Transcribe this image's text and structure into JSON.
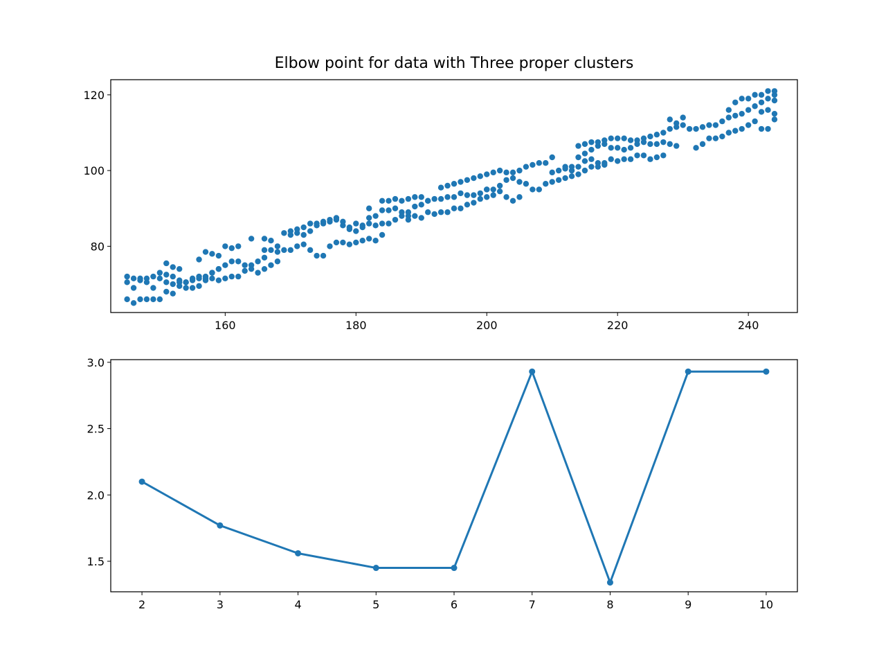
{
  "title": "Elbow point for data with Three proper clusters",
  "colors": {
    "series": "#1f77b4",
    "axes": "#000000",
    "background": "#ffffff"
  },
  "chart_data": [
    {
      "type": "scatter",
      "xlim": [
        142.5,
        247.5
      ],
      "ylim": [
        62.5,
        124
      ],
      "xticks": [
        160,
        180,
        200,
        220,
        240
      ],
      "yticks": [
        80,
        100,
        120
      ],
      "grid": false,
      "points": [
        [
          145,
          72
        ],
        [
          146,
          71.5
        ],
        [
          147,
          71.5
        ],
        [
          148,
          71.5
        ],
        [
          149,
          72
        ],
        [
          150,
          73
        ],
        [
          151,
          72.5
        ],
        [
          152,
          72
        ],
        [
          153,
          71
        ],
        [
          154,
          70.5
        ],
        [
          155,
          71.5
        ],
        [
          156,
          71.5
        ],
        [
          157,
          72
        ],
        [
          158,
          73
        ],
        [
          159,
          74
        ],
        [
          160,
          75
        ],
        [
          161,
          76
        ],
        [
          162,
          76
        ],
        [
          163,
          75
        ],
        [
          164,
          75
        ],
        [
          165,
          76
        ],
        [
          166,
          77
        ],
        [
          167,
          75
        ],
        [
          168,
          76
        ],
        [
          145,
          70.5
        ],
        [
          146,
          69
        ],
        [
          147,
          71
        ],
        [
          148,
          70.5
        ],
        [
          149,
          69
        ],
        [
          150,
          71.5
        ],
        [
          151,
          70.5
        ],
        [
          152,
          70
        ],
        [
          153,
          70.5
        ],
        [
          154,
          69
        ],
        [
          155,
          69
        ],
        [
          156,
          69.5
        ],
        [
          157,
          71
        ],
        [
          158,
          71.5
        ],
        [
          159,
          71
        ],
        [
          160,
          71.5
        ],
        [
          161,
          72
        ],
        [
          162,
          72
        ],
        [
          163,
          73.5
        ],
        [
          164,
          74
        ],
        [
          165,
          73
        ],
        [
          166,
          74
        ],
        [
          145,
          66
        ],
        [
          146,
          65
        ],
        [
          147,
          66
        ],
        [
          148,
          66
        ],
        [
          149,
          66
        ],
        [
          150,
          66
        ],
        [
          151,
          68
        ],
        [
          152,
          67.5
        ],
        [
          153,
          69.5
        ],
        [
          154,
          70.5
        ],
        [
          155,
          71
        ],
        [
          156,
          72
        ],
        [
          157,
          71.5
        ],
        [
          158,
          73
        ],
        [
          159,
          74
        ],
        [
          151,
          75.5
        ],
        [
          152,
          74.5
        ],
        [
          153,
          74
        ],
        [
          156,
          76.5
        ],
        [
          157,
          78.5
        ],
        [
          158,
          78
        ],
        [
          159,
          77.5
        ],
        [
          160,
          80
        ],
        [
          161,
          79.5
        ],
        [
          162,
          80
        ],
        [
          164,
          82
        ],
        [
          166,
          82
        ],
        [
          167,
          81.5
        ],
        [
          168,
          80
        ],
        [
          166,
          79
        ],
        [
          167,
          79
        ],
        [
          168,
          78.5
        ],
        [
          169,
          79
        ],
        [
          170,
          79
        ],
        [
          171,
          80
        ],
        [
          172,
          80.5
        ],
        [
          173,
          79
        ],
        [
          174,
          77.5
        ],
        [
          175,
          77.5
        ],
        [
          176,
          80
        ],
        [
          177,
          81
        ],
        [
          178,
          81
        ],
        [
          179,
          80.5
        ],
        [
          180,
          81
        ],
        [
          181,
          81.5
        ],
        [
          182,
          82
        ],
        [
          183,
          81.5
        ],
        [
          184,
          83
        ],
        [
          169,
          83.5
        ],
        [
          170,
          84
        ],
        [
          171,
          83.5
        ],
        [
          172,
          83
        ],
        [
          173,
          84
        ],
        [
          174,
          85.5
        ],
        [
          175,
          86
        ],
        [
          176,
          86.5
        ],
        [
          177,
          87
        ],
        [
          178,
          86.5
        ],
        [
          179,
          85
        ],
        [
          180,
          86
        ],
        [
          181,
          85.5
        ],
        [
          182,
          86
        ],
        [
          183,
          85.5
        ],
        [
          184,
          86
        ],
        [
          185,
          86
        ],
        [
          186,
          87
        ],
        [
          187,
          88
        ],
        [
          188,
          88
        ],
        [
          170,
          83
        ],
        [
          171,
          84.5
        ],
        [
          172,
          85
        ],
        [
          173,
          86
        ],
        [
          174,
          86
        ],
        [
          175,
          86.5
        ],
        [
          176,
          87
        ],
        [
          177,
          87.5
        ],
        [
          178,
          85.5
        ],
        [
          179,
          84.5
        ],
        [
          180,
          84
        ],
        [
          181,
          85
        ],
        [
          182,
          87.5
        ],
        [
          183,
          88
        ],
        [
          184,
          89.5
        ],
        [
          185,
          89.5
        ],
        [
          186,
          90
        ],
        [
          187,
          89
        ],
        [
          188,
          89
        ],
        [
          189,
          90.5
        ],
        [
          190,
          91
        ],
        [
          191,
          92
        ],
        [
          182,
          90
        ],
        [
          184,
          92
        ],
        [
          185,
          92
        ],
        [
          186,
          92.5
        ],
        [
          187,
          92
        ],
        [
          188,
          92.5
        ],
        [
          189,
          93
        ],
        [
          190,
          93
        ],
        [
          191,
          92
        ],
        [
          192,
          92.5
        ],
        [
          193,
          92.5
        ],
        [
          194,
          93
        ],
        [
          195,
          93
        ],
        [
          196,
          94
        ],
        [
          197,
          93.5
        ],
        [
          198,
          93.5
        ],
        [
          199,
          94
        ],
        [
          200,
          95
        ],
        [
          188,
          87
        ],
        [
          189,
          88
        ],
        [
          190,
          87.5
        ],
        [
          191,
          89
        ],
        [
          192,
          88.5
        ],
        [
          193,
          89
        ],
        [
          194,
          89
        ],
        [
          195,
          90
        ],
        [
          196,
          90
        ],
        [
          197,
          91
        ],
        [
          198,
          91.5
        ],
        [
          199,
          92.5
        ],
        [
          200,
          93
        ],
        [
          201,
          93.5
        ],
        [
          202,
          94.5
        ],
        [
          203,
          93
        ],
        [
          204,
          92
        ],
        [
          205,
          93
        ],
        [
          193,
          95.5
        ],
        [
          194,
          96
        ],
        [
          195,
          96.5
        ],
        [
          196,
          97
        ],
        [
          197,
          97.5
        ],
        [
          198,
          98
        ],
        [
          199,
          98.5
        ],
        [
          200,
          99
        ],
        [
          201,
          99.5
        ],
        [
          202,
          100
        ],
        [
          203,
          99.5
        ],
        [
          204,
          99.5
        ],
        [
          205,
          100
        ],
        [
          206,
          101
        ],
        [
          207,
          101.5
        ],
        [
          208,
          102
        ],
        [
          209,
          102
        ],
        [
          210,
          103.5
        ],
        [
          200,
          95
        ],
        [
          201,
          95
        ],
        [
          202,
          96
        ],
        [
          203,
          97.5
        ],
        [
          204,
          98
        ],
        [
          205,
          97
        ],
        [
          206,
          96.5
        ],
        [
          207,
          95
        ],
        [
          208,
          95
        ],
        [
          209,
          96.5
        ],
        [
          210,
          97
        ],
        [
          211,
          97.5
        ],
        [
          212,
          98
        ],
        [
          213,
          98.5
        ],
        [
          214,
          99
        ],
        [
          215,
          100
        ],
        [
          216,
          101
        ],
        [
          217,
          101
        ],
        [
          218,
          101.5
        ],
        [
          210,
          99.5
        ],
        [
          211,
          100
        ],
        [
          212,
          101
        ],
        [
          213,
          100
        ],
        [
          214,
          101
        ],
        [
          215,
          102.5
        ],
        [
          216,
          103
        ],
        [
          217,
          102
        ],
        [
          218,
          102
        ],
        [
          219,
          103
        ],
        [
          220,
          102.5
        ],
        [
          221,
          103
        ],
        [
          222,
          103
        ],
        [
          223,
          104
        ],
        [
          224,
          104
        ],
        [
          225,
          103
        ],
        [
          226,
          103.5
        ],
        [
          227,
          104
        ],
        [
          212,
          100.5
        ],
        [
          213,
          101
        ],
        [
          214,
          103.5
        ],
        [
          215,
          104.5
        ],
        [
          216,
          105.5
        ],
        [
          217,
          106.5
        ],
        [
          218,
          107
        ],
        [
          219,
          106
        ],
        [
          220,
          106
        ],
        [
          221,
          105.5
        ],
        [
          222,
          106
        ],
        [
          223,
          107
        ],
        [
          224,
          107.5
        ],
        [
          225,
          107
        ],
        [
          226,
          107
        ],
        [
          227,
          107.5
        ],
        [
          228,
          107
        ],
        [
          229,
          106.5
        ],
        [
          214,
          106.5
        ],
        [
          215,
          107
        ],
        [
          216,
          107.5
        ],
        [
          217,
          107.5
        ],
        [
          218,
          108
        ],
        [
          219,
          108.5
        ],
        [
          220,
          108.5
        ],
        [
          221,
          108.5
        ],
        [
          222,
          108
        ],
        [
          223,
          108
        ],
        [
          224,
          108.5
        ],
        [
          225,
          109
        ],
        [
          226,
          109.5
        ],
        [
          227,
          110
        ],
        [
          228,
          111
        ],
        [
          229,
          111.5
        ],
        [
          230,
          112
        ],
        [
          228,
          113.5
        ],
        [
          229,
          112.5
        ],
        [
          230,
          114
        ],
        [
          231,
          111
        ],
        [
          232,
          111
        ],
        [
          233,
          111.5
        ],
        [
          234,
          112
        ],
        [
          235,
          112
        ],
        [
          236,
          113
        ],
        [
          237,
          114
        ],
        [
          238,
          114.5
        ],
        [
          239,
          115
        ],
        [
          240,
          116
        ],
        [
          241,
          117
        ],
        [
          242,
          118
        ],
        [
          243,
          119
        ],
        [
          244,
          120
        ],
        [
          232,
          106
        ],
        [
          233,
          107
        ],
        [
          234,
          108.5
        ],
        [
          235,
          108.5
        ],
        [
          236,
          109
        ],
        [
          237,
          110
        ],
        [
          238,
          110.5
        ],
        [
          239,
          111
        ],
        [
          240,
          112
        ],
        [
          241,
          113
        ],
        [
          242,
          111
        ],
        [
          243,
          111
        ],
        [
          244,
          113.5
        ],
        [
          237,
          116
        ],
        [
          238,
          118
        ],
        [
          239,
          119
        ],
        [
          240,
          119
        ],
        [
          241,
          120
        ],
        [
          242,
          120
        ],
        [
          243,
          121
        ],
        [
          244,
          121
        ],
        [
          244,
          118.5
        ],
        [
          243,
          116
        ],
        [
          242,
          115.5
        ],
        [
          244,
          115
        ]
      ]
    },
    {
      "type": "line",
      "xlim": [
        1.6,
        10.4
      ],
      "ylim": [
        1.27,
        3.02
      ],
      "xticks": [
        2,
        3,
        4,
        5,
        6,
        7,
        8,
        9,
        10
      ],
      "yticks": [
        1.5,
        2.0,
        2.5,
        3.0
      ],
      "ytick_labels": [
        "1.5",
        "2.0",
        "2.5",
        "3.0"
      ],
      "grid": false,
      "x": [
        2,
        3,
        4,
        5,
        6,
        7,
        8,
        9,
        10
      ],
      "y": [
        2.1,
        1.77,
        1.56,
        1.45,
        1.45,
        2.93,
        1.34,
        2.93,
        2.93
      ]
    }
  ]
}
